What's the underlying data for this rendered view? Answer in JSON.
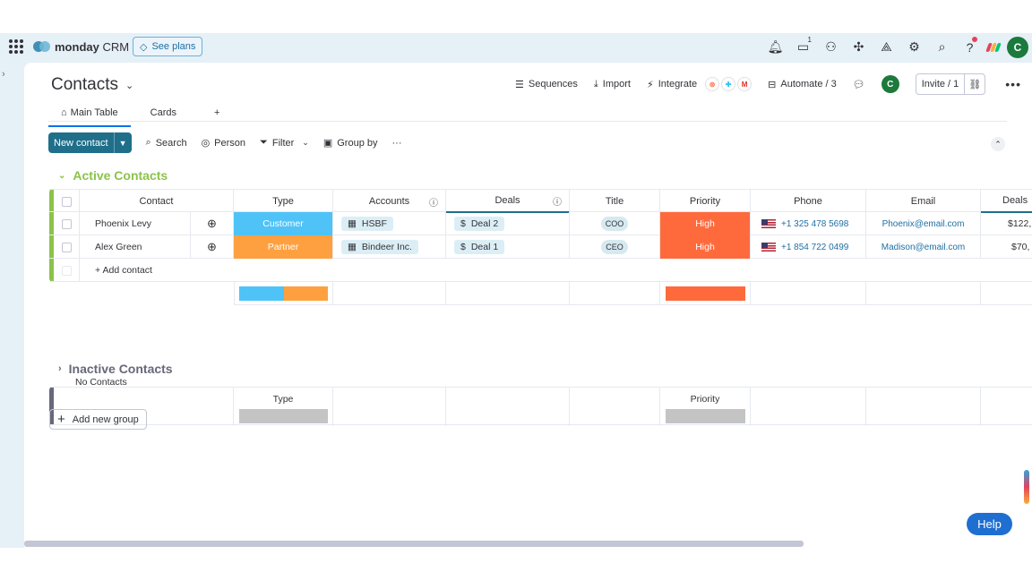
{
  "topbar": {
    "brand": "monday",
    "brand_suffix": "CRM",
    "see_plans": "See plans",
    "inbox_count": "1",
    "avatar_initial": "C"
  },
  "page": {
    "title": "Contacts",
    "actions": {
      "sequences": "Sequences",
      "import": "Import",
      "integrate": "Integrate",
      "automate": "Automate / 3",
      "invite": "Invite / 1",
      "avatar_initial": "C"
    },
    "tabs": [
      "Main Table",
      "Cards",
      "+"
    ]
  },
  "toolbar": {
    "new_contact": "New contact",
    "search": "Search",
    "person": "Person",
    "filter": "Filter",
    "group_by": "Group by"
  },
  "columns": [
    "Contact",
    "Type",
    "Accounts",
    "Deals",
    "Title",
    "Priority",
    "Phone",
    "Email",
    "Deals"
  ],
  "active_group": {
    "title": "Active Contacts",
    "color": "#8bc34a",
    "rows": [
      {
        "contact": "Phoenix Levy",
        "type": "Customer",
        "type_color": "#4fc3f7",
        "account": "HSBF",
        "deal": "Deal 2",
        "title": "COO",
        "priority": "High",
        "priority_color": "#ff6a3d",
        "phone": "+1 325 478 5698",
        "email": "Phoenix@email.com",
        "deal_value": "$122,"
      },
      {
        "contact": "Alex Green",
        "type": "Partner",
        "type_color": "#ffa040",
        "account": "Bindeer Inc.",
        "deal": "Deal 1",
        "title": "CEO",
        "priority": "High",
        "priority_color": "#ff6a3d",
        "phone": "+1 854 722 0499",
        "email": "Madison@email.com",
        "deal_value": "$70,"
      }
    ],
    "add_contact": "+ Add contact"
  },
  "inactive_group": {
    "title": "Inactive Contacts",
    "empty_text": "No Contacts",
    "type_label": "Type",
    "priority_label": "Priority"
  },
  "add_group": "Add new group",
  "help": "Help"
}
